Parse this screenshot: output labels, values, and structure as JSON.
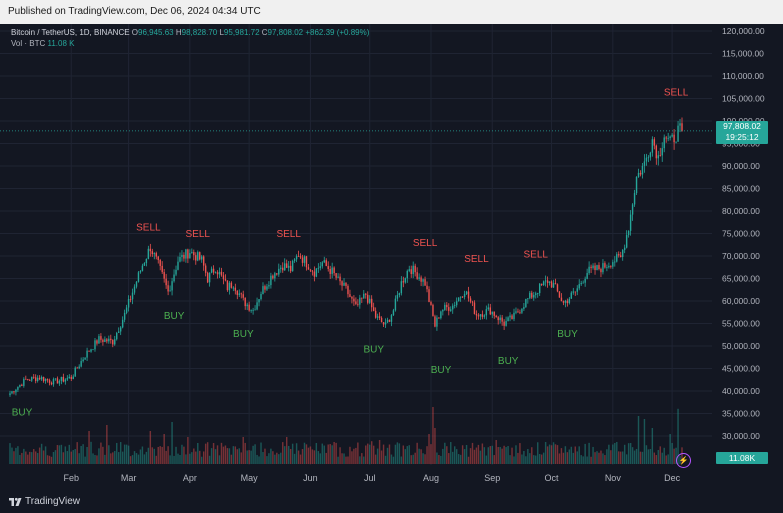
{
  "publish_bar": {
    "text": "Published on TradingView.com, Dec 06, 2024 04:34 UTC"
  },
  "legend": {
    "symbol": "Bitcoin / TetherUS, 1D, BINANCE",
    "o_label": "O",
    "o": "96,945.63",
    "h_label": "H",
    "h": "98,828.70",
    "l_label": "L",
    "l": "95,981.72",
    "c_label": "C",
    "c": "97,808.02",
    "change": "+862.39 (+0.89%)",
    "vol_label": "Vol · BTC",
    "vol": "11.08 K"
  },
  "price_tag": {
    "price": "97,808.02",
    "countdown": "19:25:12"
  },
  "vol_tag": {
    "value": "11.08K"
  },
  "footer": {
    "brand": "TradingView"
  },
  "colors": {
    "up": "#26a69a",
    "down": "#ef5350",
    "buy": "#4caf50",
    "sell": "#ef5350",
    "bg": "#131722",
    "text": "#b2b5be"
  },
  "chart_data": {
    "type": "candlestick",
    "y_ticks": [
      "120,000.00",
      "115,000.00",
      "110,000.00",
      "105,000.00",
      "100,000.00",
      "95,000.00",
      "90,000.00",
      "85,000.00",
      "80,000.00",
      "75,000.00",
      "70,000.00",
      "65,000.00",
      "60,000.00",
      "55,000.00",
      "50,000.00",
      "45,000.00",
      "40,000.00",
      "35,000.00",
      "30,000.00"
    ],
    "y_tick_values": [
      120000,
      115000,
      110000,
      105000,
      100000,
      95000,
      90000,
      85000,
      80000,
      75000,
      70000,
      65000,
      60000,
      55000,
      50000,
      45000,
      40000,
      35000,
      30000
    ],
    "x_ticks": [
      "Feb",
      "Mar",
      "Apr",
      "May",
      "Jun",
      "Jul",
      "Aug",
      "Sep",
      "Oct",
      "Nov",
      "Dec"
    ],
    "x_tick_days": [
      31,
      60,
      91,
      121,
      152,
      182,
      213,
      244,
      274,
      305,
      335
    ],
    "ylim": [
      25000,
      122000
    ],
    "x_range_days": [
      0,
      340
    ],
    "price_keypoints": [
      [
        0,
        39500
      ],
      [
        8,
        42500
      ],
      [
        15,
        43000
      ],
      [
        22,
        42000
      ],
      [
        31,
        43000
      ],
      [
        38,
        48000
      ],
      [
        45,
        51500
      ],
      [
        52,
        51000
      ],
      [
        58,
        57000
      ],
      [
        62,
        62000
      ],
      [
        67,
        68000
      ],
      [
        71,
        72000
      ],
      [
        75,
        68000
      ],
      [
        80,
        62000
      ],
      [
        85,
        69000
      ],
      [
        91,
        71000
      ],
      [
        97,
        69000
      ],
      [
        100,
        65000
      ],
      [
        104,
        67500
      ],
      [
        110,
        63000
      ],
      [
        113,
        64000
      ],
      [
        118,
        60000
      ],
      [
        123,
        58000
      ],
      [
        127,
        62000
      ],
      [
        133,
        66000
      ],
      [
        138,
        68000
      ],
      [
        142,
        67000
      ],
      [
        146,
        70500
      ],
      [
        150,
        68500
      ],
      [
        154,
        66500
      ],
      [
        158,
        68500
      ],
      [
        163,
        66500
      ],
      [
        166,
        64500
      ],
      [
        170,
        62500
      ],
      [
        175,
        58500
      ],
      [
        180,
        61500
      ],
      [
        185,
        56500
      ],
      [
        190,
        54500
      ],
      [
        194,
        58000
      ],
      [
        198,
        64000
      ],
      [
        202,
        67500
      ],
      [
        206,
        66000
      ],
      [
        210,
        64000
      ],
      [
        215,
        54500
      ],
      [
        218,
        58000
      ],
      [
        224,
        59000
      ],
      [
        230,
        62500
      ],
      [
        236,
        57000
      ],
      [
        243,
        58000
      ],
      [
        250,
        55000
      ],
      [
        255,
        56500
      ],
      [
        261,
        60000
      ],
      [
        267,
        62500
      ],
      [
        272,
        64500
      ],
      [
        275,
        63500
      ],
      [
        280,
        59500
      ],
      [
        286,
        62000
      ],
      [
        292,
        66500
      ],
      [
        300,
        67500
      ],
      [
        305,
        69000
      ],
      [
        309,
        69500
      ],
      [
        313,
        76500
      ],
      [
        317,
        87500
      ],
      [
        321,
        90500
      ],
      [
        325,
        96000
      ],
      [
        328,
        92000
      ],
      [
        331,
        97000
      ],
      [
        334,
        95000
      ],
      [
        338,
        97800
      ]
    ],
    "signals": [
      {
        "type": "BUY",
        "label": "BUY",
        "day": 1,
        "price": 39000
      },
      {
        "type": "SELL",
        "label": "SELL",
        "day": 70,
        "price": 73500
      },
      {
        "type": "BUY",
        "label": "BUY",
        "day": 78,
        "price": 60500
      },
      {
        "type": "SELL",
        "label": "SELL",
        "day": 95,
        "price": 72000
      },
      {
        "type": "BUY",
        "label": "BUY",
        "day": 113,
        "price": 56500
      },
      {
        "type": "SELL",
        "label": "SELL",
        "day": 141,
        "price": 72000
      },
      {
        "type": "BUY",
        "label": "BUY",
        "day": 179,
        "price": 53000
      },
      {
        "type": "SELL",
        "label": "SELL",
        "day": 210,
        "price": 70000
      },
      {
        "type": "BUY",
        "label": "BUY",
        "day": 213,
        "price": 48500
      },
      {
        "type": "SELL",
        "label": "SELL",
        "day": 236,
        "price": 66500
      },
      {
        "type": "BUY",
        "label": "BUY",
        "day": 247,
        "price": 50500
      },
      {
        "type": "SELL",
        "label": "SELL",
        "day": 266,
        "price": 67500
      },
      {
        "type": "BUY",
        "label": "BUY",
        "day": 277,
        "price": 56500
      },
      {
        "type": "SELL",
        "label": "SELL",
        "day": 337,
        "price": 103500
      }
    ],
    "last_price": 97808.02,
    "volume_spikes": [
      [
        40,
        0.55
      ],
      [
        49,
        0.65
      ],
      [
        71,
        0.55
      ],
      [
        78,
        0.5
      ],
      [
        82,
        0.7
      ],
      [
        90,
        0.45
      ],
      [
        95,
        0.35
      ],
      [
        118,
        0.45
      ],
      [
        140,
        0.45
      ],
      [
        183,
        0.38
      ],
      [
        187,
        0.4
      ],
      [
        212,
        0.5
      ],
      [
        214,
        0.95
      ],
      [
        215,
        0.6
      ],
      [
        246,
        0.4
      ],
      [
        252,
        0.3
      ],
      [
        306,
        0.35
      ],
      [
        311,
        0.32
      ],
      [
        314,
        0.35
      ],
      [
        318,
        0.8
      ],
      [
        321,
        0.75
      ],
      [
        325,
        0.6
      ],
      [
        334,
        0.5
      ],
      [
        338,
        0.92
      ]
    ]
  }
}
